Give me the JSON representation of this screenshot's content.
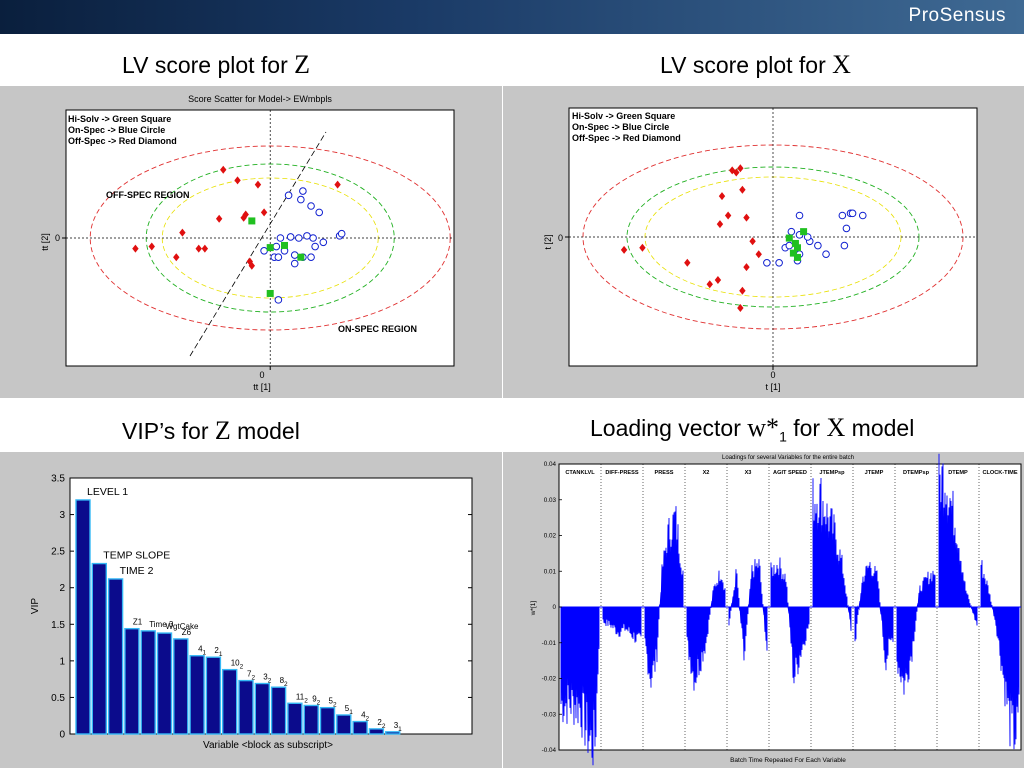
{
  "header": {
    "logo": "ProSensus"
  },
  "captions": {
    "top_left": {
      "text": "LV score plot for",
      "symbol": "Z"
    },
    "top_right": {
      "text": "LV score plot for",
      "symbol": "X"
    },
    "bottom_left": {
      "text": "VIP’s for",
      "symbol": "Z",
      "suffix": "model"
    },
    "bottom_right": {
      "text": "Loading vector",
      "symbol": "w*",
      "sub": "1",
      "mid": "for",
      "symbol2": "X",
      "suffix": "model"
    }
  },
  "chart_data": [
    {
      "type": "scatter",
      "title": "Score Scatter for  Model-> EWmbpls",
      "xlabel": "tt [1]",
      "ylabel": "tt [2]",
      "x_ticks": [
        "0"
      ],
      "y_ticks": [
        "0"
      ],
      "legend": [
        "Hi-Solv ->    Green Square",
        "On-Spec -> Blue Circle",
        "Off-Spec -> Red Diamond"
      ],
      "legend_position": "top-left",
      "annotations": [
        "OFF-SPEC REGION",
        "ON-SPEC REGION"
      ],
      "xlim": [
        -10,
        9
      ],
      "ylim": [
        -6,
        6
      ],
      "series": [
        {
          "name": "Off-Spec -> Red Diamond",
          "color": "#e01010",
          "marker": "diamond",
          "x": [
            -6.6,
            -5.8,
            -4.3,
            -4.6,
            -3.2,
            -3.5,
            -2.5,
            -1.3,
            -1.6,
            -2.3,
            -1.2,
            -0.6,
            -0.3,
            -1.0,
            3.3,
            -0.9
          ],
          "y": [
            -0.5,
            -0.4,
            0.25,
            -0.9,
            -0.5,
            -0.5,
            0.9,
            0.95,
            2.7,
            3.2,
            1.1,
            2.5,
            1.2,
            -1.1,
            2.5,
            -1.3
          ]
        },
        {
          "name": "On-Spec -> Blue Circle",
          "color": "#1020d0",
          "marker": "circle",
          "x": [
            0.2,
            0.7,
            1.2,
            1.6,
            1.4,
            2.6,
            3.4,
            3.5,
            2.4,
            2.0,
            1.6,
            0.9,
            1.5,
            2.2,
            2.1,
            1.8,
            1.0,
            0.5,
            0.3,
            -0.3,
            0.4,
            1.2,
            2.0,
            0.4
          ],
          "y": [
            -0.9,
            -0.6,
            -0.8,
            -0.9,
            0.0,
            -0.2,
            0.1,
            0.2,
            1.2,
            1.5,
            2.2,
            2.0,
            1.8,
            -0.4,
            0.0,
            0.1,
            0.05,
            0.0,
            -0.4,
            -0.6,
            -0.9,
            -1.2,
            -0.9,
            -2.9
          ]
        },
        {
          "name": "Hi-Solv ->    Green Square",
          "color": "#20c020",
          "marker": "square",
          "x": [
            -0.9,
            0.0,
            0.7,
            1.5,
            0.0
          ],
          "y": [
            0.8,
            -0.45,
            -0.35,
            -0.9,
            -2.6
          ]
        }
      ]
    },
    {
      "type": "scatter",
      "title": "",
      "xlabel": "t [1]",
      "ylabel": "t [2]",
      "x_ticks": [
        "0"
      ],
      "y_ticks": [
        "0"
      ],
      "legend": [
        "Hi-Solv ->    Green Square",
        "On-Spec -> Blue Circle",
        "Off-Spec -> Red Diamond"
      ],
      "legend_position": "top-left",
      "xlim": [
        -10,
        10
      ],
      "ylim": [
        -6,
        6
      ],
      "series": [
        {
          "name": "Off-Spec -> Red Diamond",
          "color": "#e01010",
          "marker": "diamond",
          "x": [
            -7.3,
            -6.4,
            -4.2,
            -3.1,
            -2.7,
            -2.5,
            -2.2,
            -2.6,
            -2.0,
            -1.6,
            -1.8,
            -1.5,
            -1.3,
            -1.0,
            -0.7,
            -1.3,
            -1.5,
            -1.6
          ],
          "y": [
            -0.6,
            -0.5,
            -1.2,
            -2.2,
            -2.0,
            1.9,
            1.0,
            0.6,
            3.1,
            3.2,
            3.0,
            2.2,
            0.9,
            -0.2,
            -0.8,
            -1.4,
            -2.5,
            -3.3
          ]
        },
        {
          "name": "On-Spec -> Blue Circle",
          "color": "#1020d0",
          "marker": "circle",
          "x": [
            1.3,
            1.2,
            2.2,
            1.8,
            1.7,
            1.3,
            0.9,
            0.6,
            -0.3,
            0.3,
            0.8,
            1.3,
            3.4,
            3.8,
            3.9,
            4.4,
            3.6,
            3.5,
            2.6
          ],
          "y": [
            -0.8,
            -1.1,
            -0.4,
            -0.2,
            0.0,
            0.1,
            0.25,
            -0.5,
            -1.2,
            -1.2,
            -0.4,
            1.0,
            1.0,
            1.1,
            1.1,
            1.0,
            0.4,
            -0.4,
            -0.8
          ]
        },
        {
          "name": "Hi-Solv ->    Green Square",
          "color": "#20c020",
          "marker": "square",
          "x": [
            1.5,
            0.8,
            1.1,
            1.2,
            1.0,
            1.2
          ],
          "y": [
            0.25,
            -0.05,
            -0.3,
            -0.5,
            -0.75,
            -0.95
          ]
        }
      ]
    },
    {
      "type": "bar",
      "title": "",
      "xlabel": "Variable <block as subscript>",
      "ylabel": "VIP",
      "ylim": [
        0,
        3.5
      ],
      "y_ticks": [
        "0",
        "0.5",
        "1",
        "1.5",
        "2",
        "2.5",
        "3",
        "3.5"
      ],
      "bar_color": "#0b0b8c",
      "bar_edge": "#35b8f5",
      "values": [
        3.2,
        2.33,
        2.12,
        1.44,
        1.41,
        1.38,
        1.3,
        1.07,
        1.05,
        0.88,
        0.73,
        0.69,
        0.64,
        0.42,
        0.39,
        0.36,
        0.26,
        0.17,
        0.07,
        0.03
      ],
      "data_labels": [
        {
          "bar": 0,
          "base": "LEVEL 1",
          "sub": ""
        },
        {
          "bar": 1,
          "base": "TEMP SLOPE",
          "sub": ""
        },
        {
          "bar": 2,
          "base": "TIME 2",
          "sub": ""
        },
        {
          "bar": 3,
          "base": "Z1",
          "sub": ""
        },
        {
          "bar": 4,
          "base": "Time 3",
          "sub": ""
        },
        {
          "bar": 5,
          "base": "WgtCake",
          "sub": ""
        },
        {
          "bar": 6,
          "base": "Z6",
          "sub": ""
        },
        {
          "bar": 7,
          "base": "4",
          "sub": "1"
        },
        {
          "bar": 8,
          "base": "2",
          "sub": "1"
        },
        {
          "bar": 9,
          "base": "10",
          "sub": "2"
        },
        {
          "bar": 10,
          "base": "7",
          "sub": "2"
        },
        {
          "bar": 11,
          "base": "3",
          "sub": "2"
        },
        {
          "bar": 12,
          "base": "8",
          "sub": "2"
        },
        {
          "bar": 13,
          "base": "11",
          "sub": "2"
        },
        {
          "bar": 14,
          "base": "9",
          "sub": "2"
        },
        {
          "bar": 15,
          "base": "5",
          "sub": "2"
        },
        {
          "bar": 16,
          "base": "5",
          "sub": "1"
        },
        {
          "bar": 17,
          "base": "4",
          "sub": "2"
        },
        {
          "bar": 18,
          "base": "2",
          "sub": "2"
        },
        {
          "bar": 19,
          "base": "3",
          "sub": "1"
        }
      ]
    },
    {
      "type": "area",
      "title": "Loadings for several Variables for the entire batch",
      "xlabel": "Batch Time Repeated For Each Variable",
      "ylabel": "w*[1]",
      "ylim": [
        -0.04,
        0.04
      ],
      "y_ticks": [
        "0.04",
        "0.03",
        "0.02",
        "0.01",
        "0",
        "-0.01",
        "-0.02",
        "-0.03",
        "-0.04"
      ],
      "color": "#0000ff",
      "variables": [
        "CTANKLVL",
        "DIFF-PRESS",
        "PRESS",
        "X2",
        "X3",
        "AGIT SPEED",
        "JTEMPsp",
        "JTEMP",
        "DTEMPsp",
        "DTEMP",
        "CLOCK-TIME"
      ],
      "profile": [
        {
          "var": "CTANKLVL",
          "points": [
            [
              0,
              -0.027
            ],
            [
              0.3,
              -0.027
            ],
            [
              0.5,
              -0.028
            ],
            [
              0.7,
              -0.035
            ],
            [
              0.8,
              -0.038
            ],
            [
              0.9,
              -0.038
            ],
            [
              1.0,
              -0.01
            ]
          ]
        },
        {
          "var": "DIFF-PRESS",
          "points": [
            [
              0,
              -0.004
            ],
            [
              0.2,
              -0.005
            ],
            [
              0.4,
              -0.007
            ],
            [
              0.6,
              -0.006
            ],
            [
              0.8,
              -0.008
            ],
            [
              1.0,
              -0.01
            ]
          ]
        },
        {
          "var": "PRESS",
          "points": [
            [
              0,
              -0.01
            ],
            [
              0.15,
              -0.02
            ],
            [
              0.3,
              -0.015
            ],
            [
              0.45,
              0.01
            ],
            [
              0.6,
              0.02
            ],
            [
              0.8,
              0.025
            ],
            [
              1.0,
              0.01
            ]
          ]
        },
        {
          "var": "X2",
          "points": [
            [
              0,
              -0.01
            ],
            [
              0.2,
              -0.02
            ],
            [
              0.35,
              -0.015
            ],
            [
              0.5,
              -0.01
            ],
            [
              0.7,
              0.005
            ],
            [
              0.9,
              0.01
            ],
            [
              1.0,
              0.005
            ]
          ]
        },
        {
          "var": "X3",
          "points": [
            [
              0,
              -0.005
            ],
            [
              0.2,
              0.01
            ],
            [
              0.4,
              -0.015
            ],
            [
              0.6,
              0.01
            ],
            [
              0.8,
              0.012
            ],
            [
              1.0,
              -0.012
            ]
          ]
        },
        {
          "var": "AGIT SPEED",
          "points": [
            [
              0,
              0.01
            ],
            [
              0.2,
              0.012
            ],
            [
              0.4,
              0.008
            ],
            [
              0.6,
              -0.02
            ],
            [
              0.8,
              -0.012
            ],
            [
              1.0,
              -0.005
            ]
          ]
        },
        {
          "var": "JTEMPsp",
          "points": [
            [
              0,
              0.03
            ],
            [
              0.2,
              0.031
            ],
            [
              0.4,
              0.025
            ],
            [
              0.6,
              0.02
            ],
            [
              0.8,
              0.01
            ],
            [
              1.0,
              -0.006
            ]
          ]
        },
        {
          "var": "JTEMP",
          "points": [
            [
              0,
              -0.01
            ],
            [
              0.2,
              0.008
            ],
            [
              0.4,
              0.012
            ],
            [
              0.6,
              0.008
            ],
            [
              0.8,
              -0.015
            ],
            [
              1.0,
              -0.008
            ]
          ]
        },
        {
          "var": "DTEMPsp",
          "points": [
            [
              0,
              -0.015
            ],
            [
              0.2,
              -0.022
            ],
            [
              0.4,
              -0.012
            ],
            [
              0.6,
              0.005
            ],
            [
              0.8,
              0.008
            ],
            [
              1.0,
              0.01
            ]
          ]
        },
        {
          "var": "DTEMP",
          "points": [
            [
              0,
              0.035
            ],
            [
              0.15,
              0.037
            ],
            [
              0.3,
              0.03
            ],
            [
              0.5,
              0.02
            ],
            [
              0.7,
              0.005
            ],
            [
              1.0,
              -0.005
            ]
          ]
        },
        {
          "var": "CLOCK-TIME",
          "points": [
            [
              0,
              0.012
            ],
            [
              0.2,
              0.005
            ],
            [
              0.4,
              -0.005
            ],
            [
              0.6,
              -0.02
            ],
            [
              0.8,
              -0.035
            ],
            [
              0.95,
              -0.035
            ],
            [
              1.0,
              -0.03
            ]
          ]
        }
      ]
    }
  ]
}
